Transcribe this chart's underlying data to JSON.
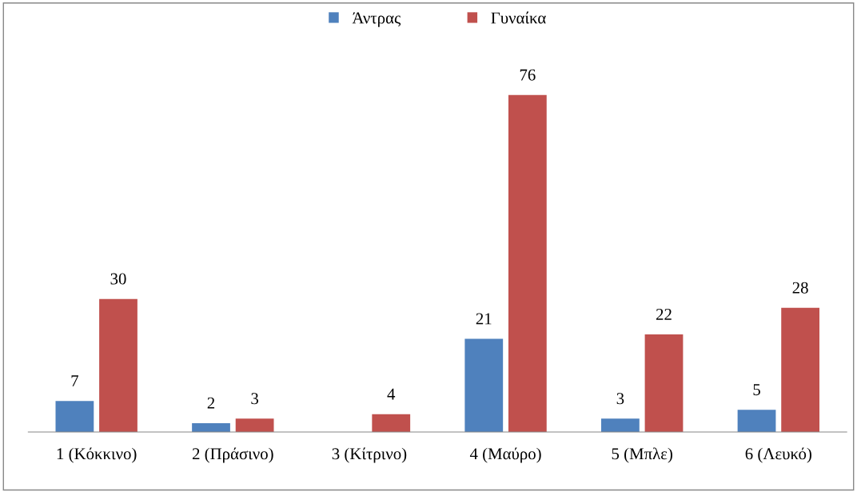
{
  "chart_data": {
    "type": "bar",
    "categories": [
      "1 (Κόκκινο)",
      "2 (Πράσινο)",
      "3 (Κίτρινο)",
      "4 (Μαύρο)",
      "5 (Μπλε)",
      "6 (Λευκό)"
    ],
    "series": [
      {
        "name": "Άντρας",
        "color": "#4f81bd",
        "values": [
          7,
          2,
          null,
          21,
          3,
          5
        ]
      },
      {
        "name": "Γυναίκα",
        "color": "#c0504d",
        "values": [
          30,
          3,
          4,
          76,
          22,
          28
        ]
      }
    ],
    "tick_labels": "x",
    "data_labels": true,
    "legend": "top"
  }
}
